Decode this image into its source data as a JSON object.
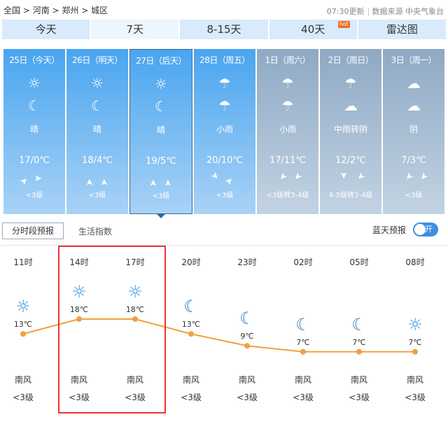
{
  "breadcrumb": [
    "全国",
    "河南",
    "郑州",
    "城区"
  ],
  "update_time": "07:30更新",
  "source": "数据来源 中央气象台",
  "tabs": [
    {
      "label": "今天"
    },
    {
      "label": "7天",
      "active": true
    },
    {
      "label": "8-15天"
    },
    {
      "label": "40天",
      "badge": "hot"
    },
    {
      "label": "雷达图"
    }
  ],
  "days": [
    {
      "date": "25日（今天）",
      "day_icon": "sun-icon",
      "night_icon": "moon-icon",
      "desc": "晴",
      "temp": "17/0℃",
      "wind_dirs": [
        "southwest",
        "west"
      ],
      "wind": "<3级"
    },
    {
      "date": "26日（明天）",
      "day_icon": "sun-icon",
      "night_icon": "moon-icon",
      "desc": "晴",
      "temp": "18/4℃",
      "wind_dirs": [
        "south",
        "south"
      ],
      "wind": "<3级"
    },
    {
      "date": "27日（后天）",
      "day_icon": "sun-icon",
      "night_icon": "moon-icon",
      "desc": "晴",
      "temp": "19/5℃",
      "wind_dirs": [
        "south",
        "south"
      ],
      "wind": "<3级",
      "selected": true
    },
    {
      "date": "28日（周五）",
      "day_icon": "rain-icon",
      "night_icon": "rain-icon",
      "desc": "小雨",
      "temp": "20/10℃",
      "wind_dirs": [
        "northwest",
        "southwest"
      ],
      "wind": "<3级"
    },
    {
      "date": "1日（周六）",
      "day_icon": "rain-icon",
      "night_icon": "rain-icon",
      "desc": "小雨",
      "temp": "17/11℃",
      "wind_dirs": [
        "northeast",
        "northeast"
      ],
      "wind": "<3级转3-4级"
    },
    {
      "date": "2日（周日）",
      "day_icon": "rain-icon",
      "night_icon": "cloudy-night-icon",
      "desc": "中雨转阴",
      "temp": "12/2℃",
      "wind_dirs": [
        "north",
        "northeast"
      ],
      "wind": "4-5级转3-4级"
    },
    {
      "date": "3日（周一）",
      "day_icon": "overcast-icon",
      "night_icon": "cloudy-night-icon",
      "desc": "阴",
      "temp": "7/3℃",
      "wind_dirs": [
        "northeast",
        "northeast"
      ],
      "wind": "<3级"
    }
  ],
  "subtabs": {
    "hourly": "分时段预报",
    "life": "生活指数"
  },
  "blue_sky": {
    "label": "蓝天预报",
    "toggle": "开"
  },
  "chart_data": {
    "type": "line",
    "categories": [
      "11时",
      "14时",
      "17时",
      "20时",
      "23时",
      "02时",
      "05时",
      "08时"
    ],
    "values": [
      13,
      18,
      18,
      13,
      9,
      7,
      7,
      7
    ],
    "labels": [
      "13℃",
      "18℃",
      "18℃",
      "13℃",
      "9℃",
      "7℃",
      "7℃",
      "7℃"
    ],
    "icons": [
      "sun-icon",
      "sun-icon",
      "sun-icon",
      "moon-icon",
      "moon-icon",
      "moon-icon",
      "moon-icon",
      "sun-icon"
    ],
    "wind_dir": [
      "南风",
      "南风",
      "南风",
      "南风",
      "南风",
      "南风",
      "南风",
      "南风"
    ],
    "wind_level": [
      "<3级",
      "<3级",
      "<3级",
      "<3级",
      "<3级",
      "<3级",
      "<3级",
      "<3级"
    ],
    "line_color": "#f0a040",
    "highlight": [
      "14时",
      "17时"
    ]
  }
}
